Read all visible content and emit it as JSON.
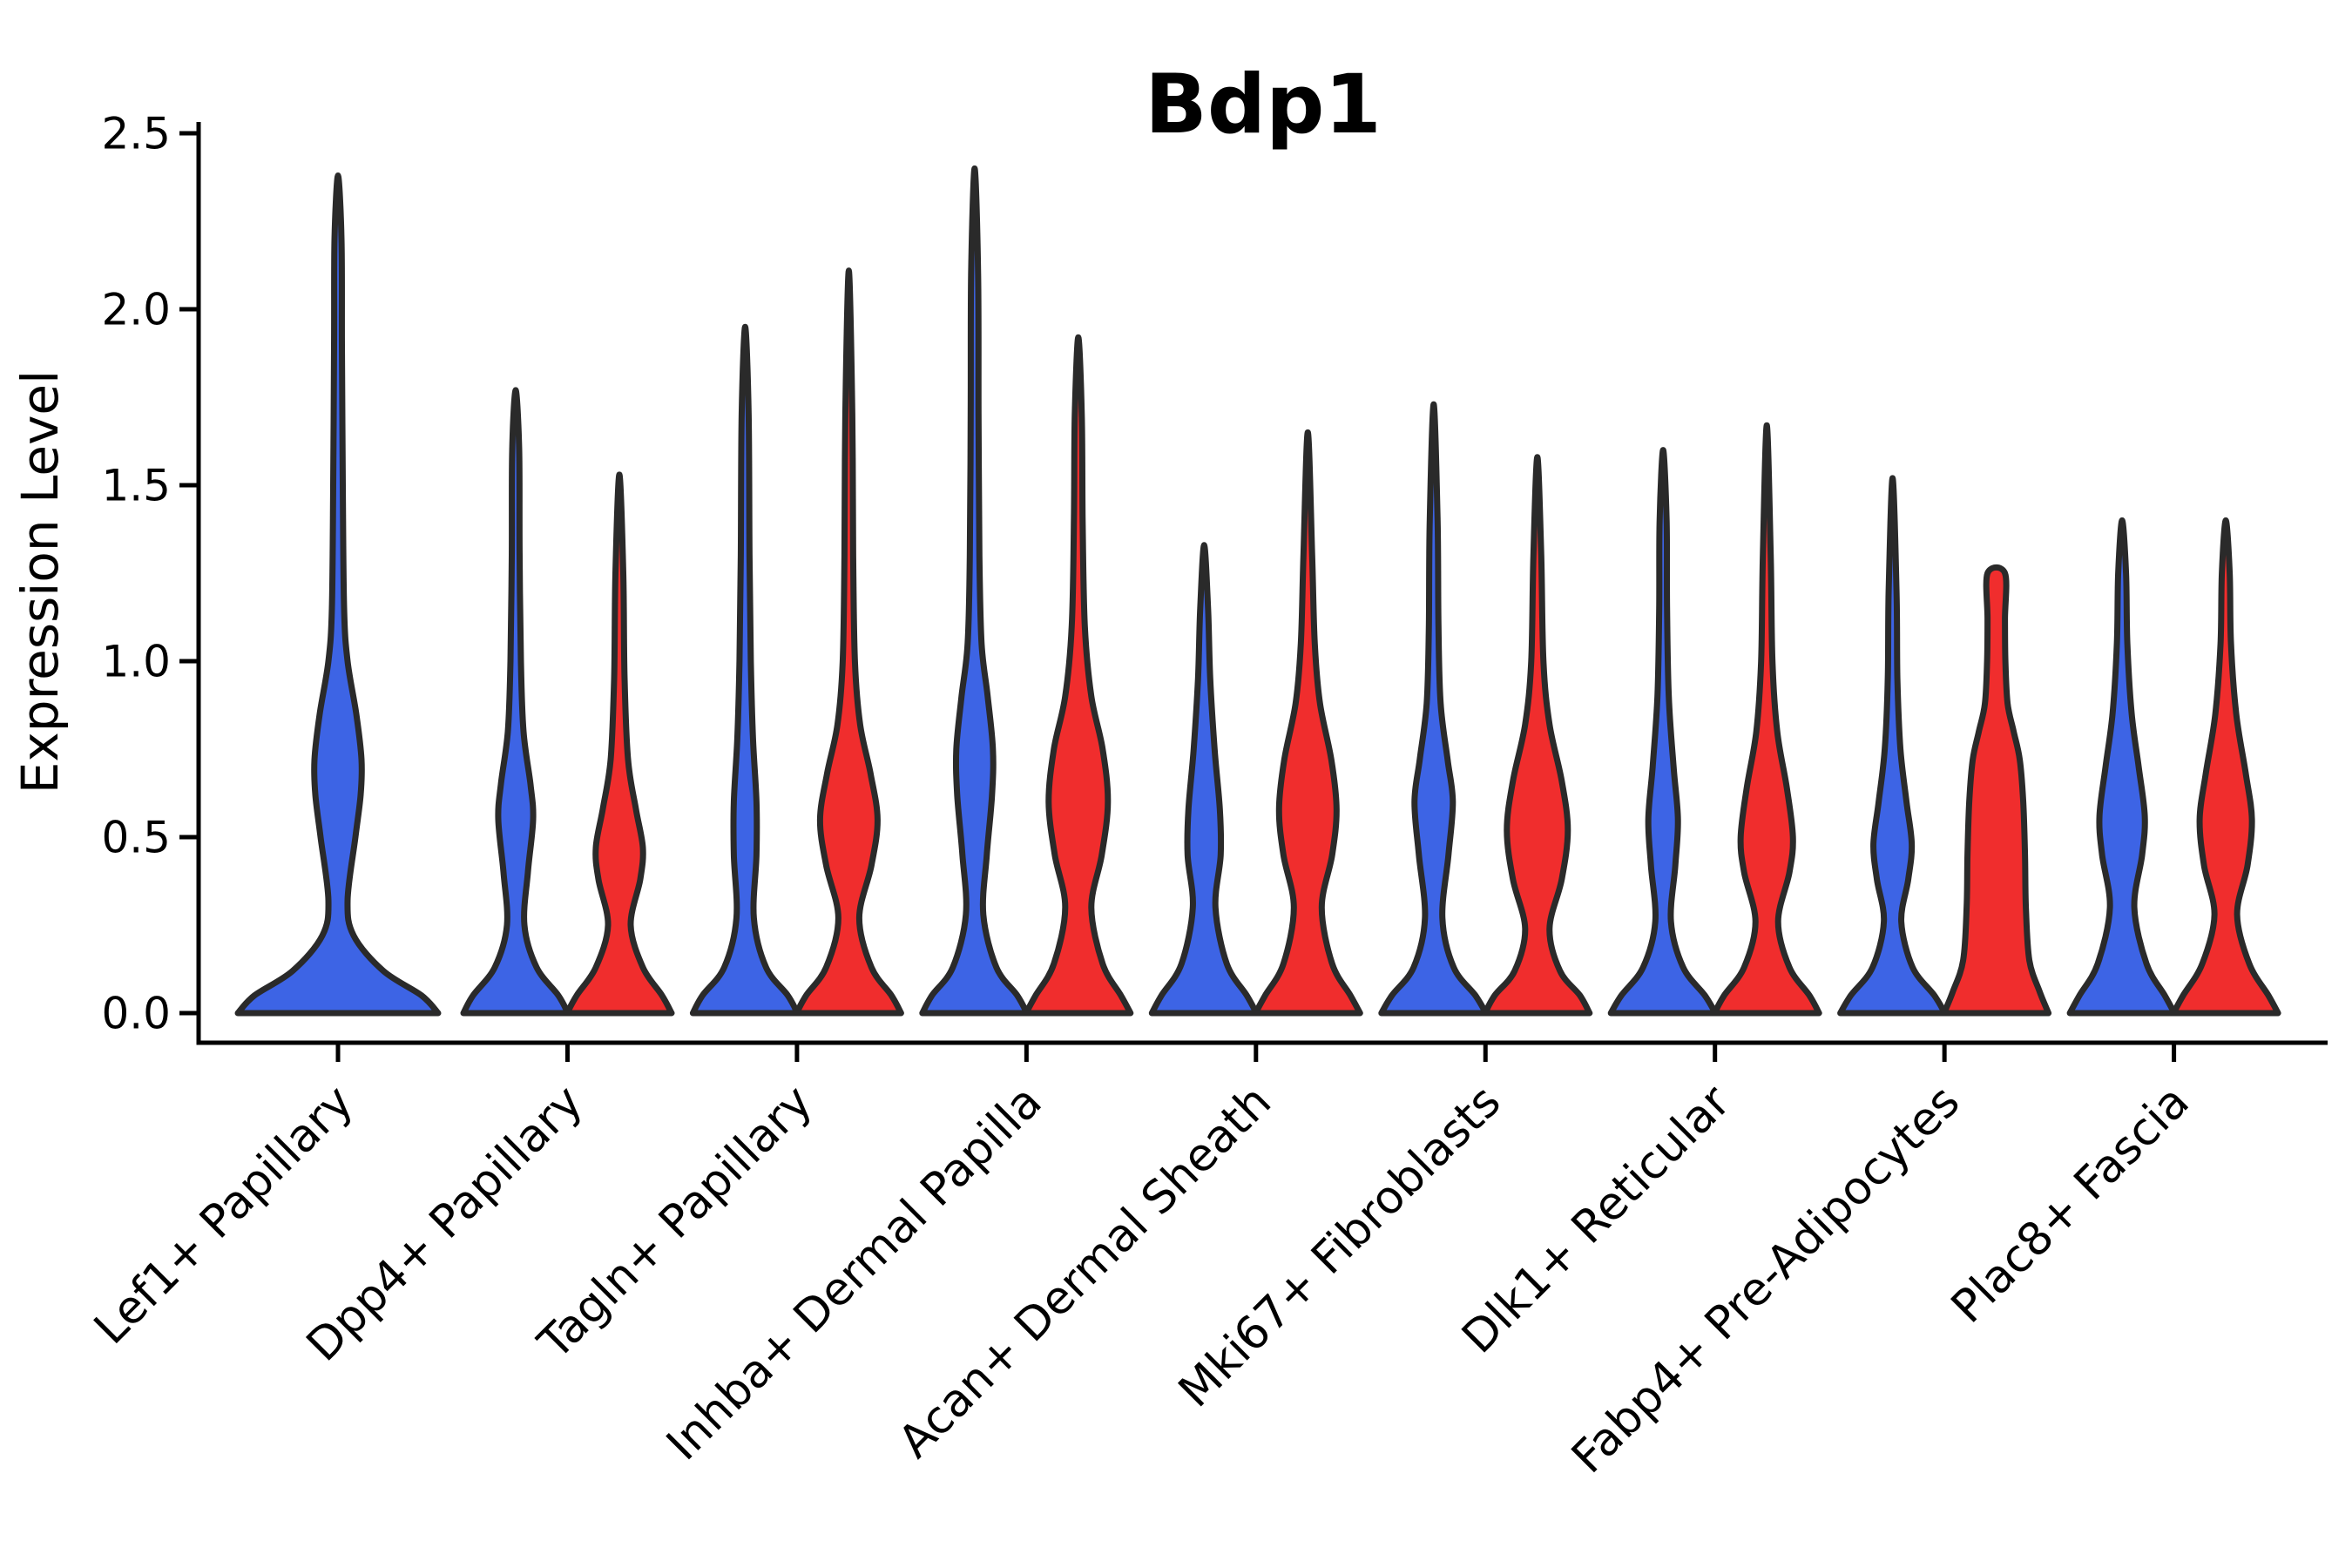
{
  "chart_data": {
    "type": "violin",
    "title": "Bdp1",
    "ylabel": "Expression Level",
    "ylim": [
      0,
      2.5
    ],
    "yticks": [
      0.0,
      0.5,
      1.0,
      1.5,
      2.0,
      2.5
    ],
    "ytick_labels": [
      "0.0",
      "0.5",
      "1.0",
      "1.5",
      "2.0",
      "2.5"
    ],
    "grid": "off",
    "legend": "none",
    "categories": [
      "Lef1+ Papillary",
      "Dpp4+ Papillary",
      "Tagln+ Papillary",
      "Inhba+ Dermal Papilla",
      "Acan+ Dermal Sheath",
      "Mki67+ Fibroblasts",
      "Dlk1+ Reticular",
      "Fabp4+ Pre-Adipocytes",
      "Plac8+ Fascia"
    ],
    "series": [
      {
        "name": "blue",
        "color": "#3D64E5"
      },
      {
        "name": "red",
        "color": "#F02D2D"
      }
    ],
    "max_expression": {
      "blue": [
        2.38,
        1.77,
        1.95,
        2.4,
        1.33,
        1.73,
        1.6,
        1.52,
        1.4
      ],
      "red": [
        null,
        1.53,
        2.11,
        1.92,
        1.65,
        1.58,
        1.67,
        1.25,
        1.4
      ]
    },
    "groups": [
      {
        "category": "Lef1+ Papillary",
        "violins": [
          {
            "color_key": "blue",
            "side": "center",
            "single": true,
            "max": 2.38,
            "flat_top": false,
            "profile": [
              [
                0,
                115
              ],
              [
                0.05,
                96
              ],
              [
                0.12,
                52
              ],
              [
                0.22,
                18
              ],
              [
                0.32,
                11
              ],
              [
                0.5,
                20
              ],
              [
                0.62,
                26
              ],
              [
                0.72,
                27
              ],
              [
                0.85,
                21
              ],
              [
                1.0,
                11
              ],
              [
                1.15,
                7
              ],
              [
                1.5,
                5.5
              ],
              [
                1.9,
                4.5
              ],
              [
                2.2,
                4
              ],
              [
                2.38,
                2.5
              ]
            ]
          }
        ]
      },
      {
        "category": "Dpp4+ Papillary",
        "violins": [
          {
            "color_key": "blue",
            "side": "left",
            "max": 1.77,
            "flat_top": false,
            "profile": [
              [
                0,
                60
              ],
              [
                0.05,
                49
              ],
              [
                0.13,
                24
              ],
              [
                0.25,
                10
              ],
              [
                0.4,
                14
              ],
              [
                0.55,
                20
              ],
              [
                0.65,
                17
              ],
              [
                0.8,
                9
              ],
              [
                1.0,
                6
              ],
              [
                1.3,
                4.5
              ],
              [
                1.6,
                4
              ],
              [
                1.77,
                2.5
              ]
            ]
          },
          {
            "color_key": "red",
            "side": "right",
            "max": 1.53,
            "flat_top": false,
            "profile": [
              [
                0,
                60
              ],
              [
                0.05,
                49
              ],
              [
                0.13,
                27
              ],
              [
                0.25,
                13
              ],
              [
                0.38,
                24
              ],
              [
                0.47,
                27
              ],
              [
                0.58,
                19
              ],
              [
                0.72,
                10
              ],
              [
                0.95,
                6
              ],
              [
                1.25,
                4.5
              ],
              [
                1.53,
                2.5
              ]
            ]
          }
        ]
      },
      {
        "category": "Tagln+ Papillary",
        "violins": [
          {
            "color_key": "blue",
            "side": "left",
            "max": 1.95,
            "flat_top": false,
            "profile": [
              [
                0,
                60
              ],
              [
                0.05,
                49
              ],
              [
                0.13,
                24
              ],
              [
                0.27,
                10
              ],
              [
                0.45,
                13
              ],
              [
                0.6,
                13
              ],
              [
                0.78,
                9
              ],
              [
                1.0,
                6.5
              ],
              [
                1.3,
                5
              ],
              [
                1.7,
                4
              ],
              [
                1.95,
                2.5
              ]
            ]
          },
          {
            "color_key": "red",
            "side": "right",
            "max": 2.11,
            "flat_top": false,
            "profile": [
              [
                0,
                60
              ],
              [
                0.05,
                49
              ],
              [
                0.13,
                26
              ],
              [
                0.27,
                12
              ],
              [
                0.42,
                26
              ],
              [
                0.55,
                33
              ],
              [
                0.68,
                25
              ],
              [
                0.82,
                13
              ],
              [
                1.0,
                7
              ],
              [
                1.3,
                5
              ],
              [
                1.7,
                4
              ],
              [
                2.11,
                2.5
              ]
            ]
          }
        ]
      },
      {
        "category": "Inhba+ Dermal Papilla",
        "violins": [
          {
            "color_key": "blue",
            "side": "left",
            "max": 2.4,
            "flat_top": false,
            "profile": [
              [
                0,
                60
              ],
              [
                0.05,
                49
              ],
              [
                0.13,
                25
              ],
              [
                0.28,
                10
              ],
              [
                0.45,
                14
              ],
              [
                0.62,
                20
              ],
              [
                0.75,
                21
              ],
              [
                0.9,
                15
              ],
              [
                1.05,
                8
              ],
              [
                1.3,
                5.5
              ],
              [
                1.7,
                4.5
              ],
              [
                2.1,
                4
              ],
              [
                2.4,
                2.5
              ]
            ]
          },
          {
            "color_key": "red",
            "side": "right",
            "max": 1.92,
            "flat_top": false,
            "profile": [
              [
                0,
                60
              ],
              [
                0.05,
                49
              ],
              [
                0.14,
                28
              ],
              [
                0.3,
                15
              ],
              [
                0.45,
                27
              ],
              [
                0.6,
                34
              ],
              [
                0.75,
                28
              ],
              [
                0.9,
                15
              ],
              [
                1.1,
                7.5
              ],
              [
                1.4,
                5
              ],
              [
                1.7,
                4
              ],
              [
                1.92,
                2.5
              ]
            ]
          }
        ]
      },
      {
        "category": "Acan+ Dermal Sheath",
        "violins": [
          {
            "color_key": "blue",
            "side": "left",
            "max": 1.33,
            "flat_top": false,
            "profile": [
              [
                0,
                60
              ],
              [
                0.05,
                49
              ],
              [
                0.14,
                26
              ],
              [
                0.3,
                13
              ],
              [
                0.45,
                19
              ],
              [
                0.58,
                18
              ],
              [
                0.75,
                12
              ],
              [
                0.95,
                7
              ],
              [
                1.15,
                4.5
              ],
              [
                1.33,
                2.5
              ]
            ]
          },
          {
            "color_key": "red",
            "side": "right",
            "max": 1.65,
            "flat_top": false,
            "profile": [
              [
                0,
                60
              ],
              [
                0.05,
                49
              ],
              [
                0.14,
                28
              ],
              [
                0.3,
                16
              ],
              [
                0.45,
                28
              ],
              [
                0.58,
                33
              ],
              [
                0.72,
                27
              ],
              [
                0.88,
                14
              ],
              [
                1.05,
                8
              ],
              [
                1.3,
                5
              ],
              [
                1.65,
                2.5
              ]
            ]
          }
        ]
      },
      {
        "category": "Mki67+ Fibroblasts",
        "violins": [
          {
            "color_key": "blue",
            "side": "left",
            "max": 1.73,
            "flat_top": false,
            "profile": [
              [
                0,
                60
              ],
              [
                0.05,
                48
              ],
              [
                0.13,
                23
              ],
              [
                0.27,
                10
              ],
              [
                0.45,
                17
              ],
              [
                0.6,
                22
              ],
              [
                0.72,
                16
              ],
              [
                0.88,
                8
              ],
              [
                1.1,
                5.5
              ],
              [
                1.4,
                4.5
              ],
              [
                1.73,
                2.5
              ]
            ]
          },
          {
            "color_key": "red",
            "side": "right",
            "max": 1.58,
            "flat_top": false,
            "profile": [
              [
                0,
                60
              ],
              [
                0.05,
                49
              ],
              [
                0.12,
                26
              ],
              [
                0.24,
                14
              ],
              [
                0.38,
                28
              ],
              [
                0.52,
                35
              ],
              [
                0.66,
                28
              ],
              [
                0.82,
                14
              ],
              [
                1.0,
                7
              ],
              [
                1.3,
                4.5
              ],
              [
                1.58,
                2.5
              ]
            ]
          }
        ]
      },
      {
        "category": "Dlk1+ Reticular",
        "violins": [
          {
            "color_key": "blue",
            "side": "left",
            "max": 1.6,
            "flat_top": false,
            "profile": [
              [
                0,
                60
              ],
              [
                0.05,
                48
              ],
              [
                0.13,
                23
              ],
              [
                0.26,
                9
              ],
              [
                0.42,
                14
              ],
              [
                0.55,
                17
              ],
              [
                0.7,
                12
              ],
              [
                0.9,
                6.5
              ],
              [
                1.15,
                4.5
              ],
              [
                1.4,
                4
              ],
              [
                1.6,
                2.5
              ]
            ]
          },
          {
            "color_key": "red",
            "side": "right",
            "max": 1.67,
            "flat_top": false,
            "profile": [
              [
                0,
                60
              ],
              [
                0.05,
                49
              ],
              [
                0.13,
                26
              ],
              [
                0.26,
                13
              ],
              [
                0.4,
                26
              ],
              [
                0.5,
                30
              ],
              [
                0.64,
                23
              ],
              [
                0.8,
                12
              ],
              [
                1.0,
                6.5
              ],
              [
                1.3,
                4.5
              ],
              [
                1.67,
                2.5
              ]
            ]
          }
        ]
      },
      {
        "category": "Fabp4+ Pre-Adipocytes",
        "violins": [
          {
            "color_key": "blue",
            "side": "left",
            "max": 1.52,
            "flat_top": false,
            "profile": [
              [
                0,
                60
              ],
              [
                0.05,
                48
              ],
              [
                0.13,
                23
              ],
              [
                0.26,
                10
              ],
              [
                0.38,
                18
              ],
              [
                0.48,
                22
              ],
              [
                0.6,
                16
              ],
              [
                0.75,
                9
              ],
              [
                0.95,
                5.5
              ],
              [
                1.2,
                4.5
              ],
              [
                1.52,
                2.5
              ]
            ]
          },
          {
            "color_key": "red",
            "side": "right",
            "max": 1.25,
            "flat_top": true,
            "profile": [
              [
                0,
                60
              ],
              [
                0.06,
                50
              ],
              [
                0.15,
                38
              ],
              [
                0.3,
                34
              ],
              [
                0.45,
                33
              ],
              [
                0.6,
                31
              ],
              [
                0.72,
                27
              ],
              [
                0.8,
                20
              ],
              [
                0.88,
                13
              ],
              [
                1.0,
                10.5
              ],
              [
                1.12,
                10
              ],
              [
                1.25,
                10
              ]
            ]
          }
        ]
      },
      {
        "category": "Plac8+ Fascia",
        "violins": [
          {
            "color_key": "blue",
            "side": "left",
            "max": 1.4,
            "flat_top": false,
            "profile": [
              [
                0,
                60
              ],
              [
                0.05,
                49
              ],
              [
                0.14,
                28
              ],
              [
                0.3,
                14
              ],
              [
                0.45,
                23
              ],
              [
                0.56,
                26
              ],
              [
                0.7,
                19
              ],
              [
                0.85,
                11
              ],
              [
                1.05,
                6
              ],
              [
                1.25,
                4.5
              ],
              [
                1.4,
                2.5
              ]
            ]
          },
          {
            "color_key": "red",
            "side": "right",
            "max": 1.4,
            "flat_top": false,
            "profile": [
              [
                0,
                60
              ],
              [
                0.05,
                49
              ],
              [
                0.14,
                27
              ],
              [
                0.28,
                13
              ],
              [
                0.42,
                25
              ],
              [
                0.55,
                30
              ],
              [
                0.68,
                23
              ],
              [
                0.85,
                12
              ],
              [
                1.05,
                6
              ],
              [
                1.25,
                4.5
              ],
              [
                1.4,
                2.5
              ]
            ]
          }
        ]
      }
    ]
  },
  "colors": {
    "blue": "#3D64E5",
    "red": "#F02D2D",
    "outline": "#2A2A2A",
    "axis": "#000000",
    "background": "#FFFFFF",
    "text": "#000000"
  }
}
